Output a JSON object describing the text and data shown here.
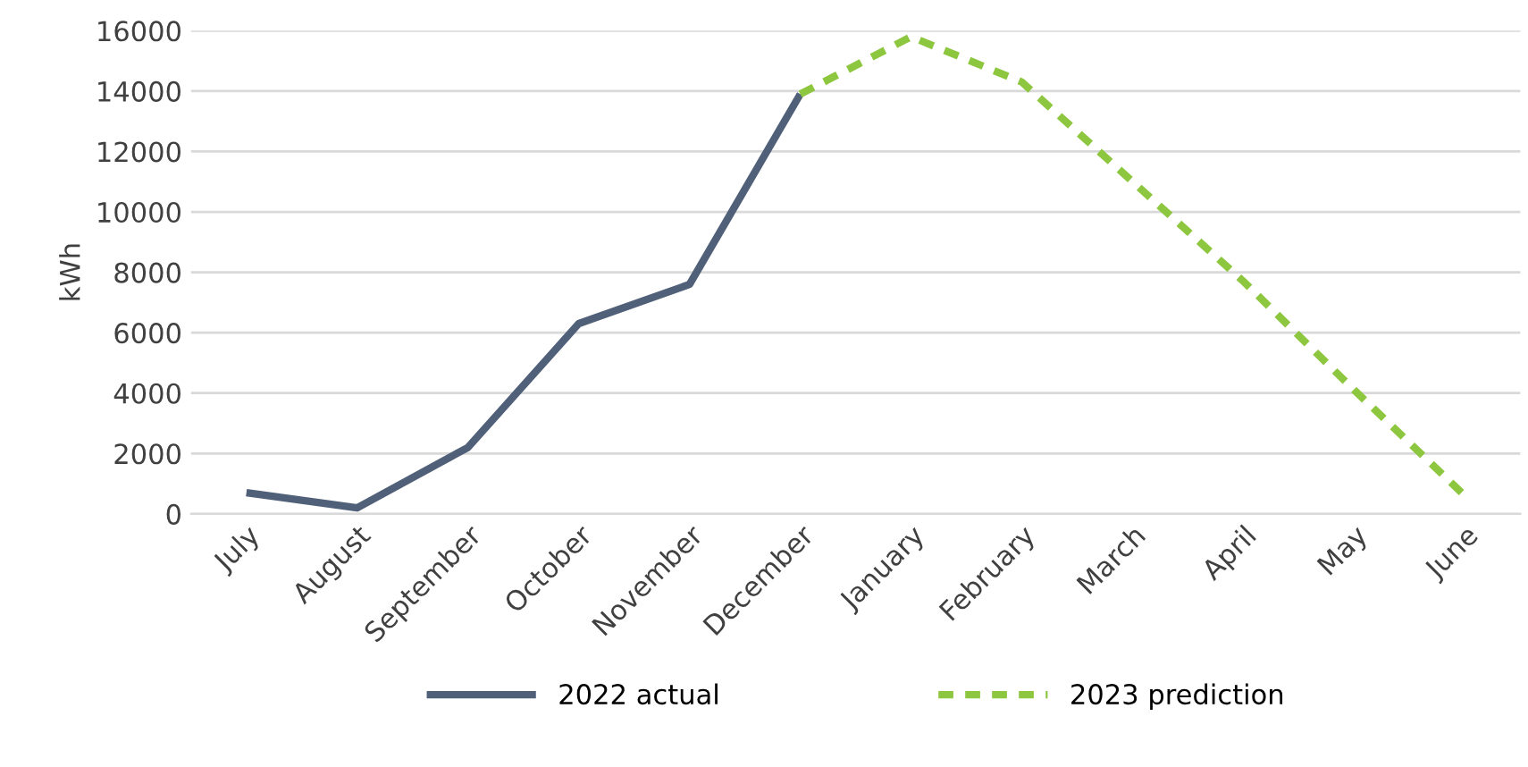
{
  "chart_data": {
    "type": "line",
    "ylabel": "kWh",
    "categories": [
      "July",
      "August",
      "September",
      "October",
      "November",
      "December",
      "January",
      "February",
      "March",
      "April",
      "May",
      "June"
    ],
    "series": [
      {
        "name": "2022 actual",
        "color": "#506079",
        "line_style": "solid",
        "values": [
          700,
          200,
          2200,
          6300,
          7600,
          13900,
          null,
          null,
          null,
          null,
          null,
          null
        ]
      },
      {
        "name": "2023 prediction",
        "color": "#8dc63f",
        "line_style": "dashed",
        "values": [
          null,
          null,
          null,
          null,
          null,
          13900,
          15800,
          14300,
          11000,
          7700,
          4100,
          600
        ]
      }
    ],
    "ylim": [
      0,
      16000
    ],
    "yticks": [
      0,
      2000,
      4000,
      6000,
      8000,
      10000,
      12000,
      14000,
      16000
    ],
    "grid": "y",
    "legend": "bottom",
    "marker": "none"
  }
}
